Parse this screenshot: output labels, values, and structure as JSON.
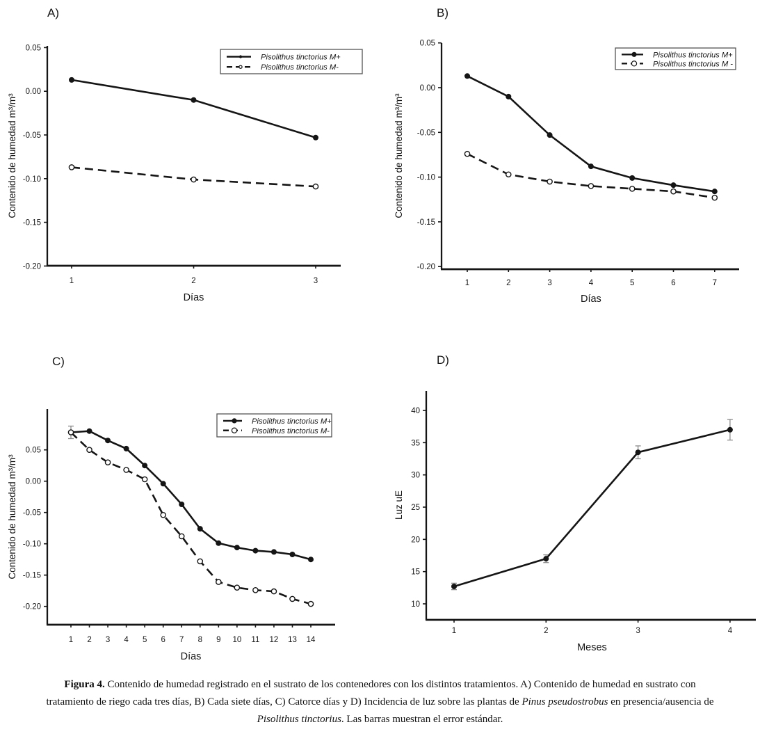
{
  "figure": {
    "caption": {
      "segments": [
        {
          "text": "Figura 4.",
          "style": "bold"
        },
        {
          "text": " Contenido de humedad registrado en el sustrato de los contenedores con los distintos tratamientos. A) Contenido de humedad en sustrato con tratamiento de riego cada tres días, B) Cada siete días, C) Catorce días y D) Incidencia de luz sobre las plantas de ",
          "style": "normal"
        },
        {
          "text": "Pinus pseudostrobus",
          "style": "italic"
        },
        {
          "text": " en presencia/ausencia de ",
          "style": "normal"
        },
        {
          "text": "Pisolithus tinctorius",
          "style": "italic"
        },
        {
          "text": ". Las barras muestran el error estándar.",
          "style": "normal"
        }
      ]
    },
    "colors": {
      "ink": "#151515",
      "background": "#ffffff",
      "error_bar": "#8a8a8a"
    }
  },
  "chart_data": [
    {
      "panel_label": "A)",
      "type": "line",
      "title": "",
      "xlabel": "Días",
      "ylabel": "Contenido de humedad m³/m³",
      "x": [
        1,
        2,
        3
      ],
      "xlim": [
        0.8,
        3.2
      ],
      "ylim": [
        -0.2,
        0.05
      ],
      "yticks": [
        "0.05",
        "0.00",
        "-0.05",
        "-0.10",
        "-0.15",
        "-0.20"
      ],
      "grid": false,
      "legend_position": "top-right",
      "series": [
        {
          "name": "Pisolithus tinctorius M+",
          "line": "solid",
          "marker": "filled-circle",
          "values": [
            0.013,
            -0.01,
            -0.053
          ]
        },
        {
          "name": "Pisolithus tinctorius M-",
          "line": "dashed",
          "marker": "open-circle",
          "values": [
            -0.087,
            -0.101,
            -0.109
          ]
        }
      ]
    },
    {
      "panel_label": "B)",
      "type": "line",
      "title": "",
      "xlabel": "Días",
      "ylabel": "Contenido de humedad m³/m³",
      "x": [
        1,
        2,
        3,
        4,
        5,
        6,
        7
      ],
      "xlim": [
        0.7,
        7.5
      ],
      "ylim": [
        -0.2,
        0.05
      ],
      "yticks": [
        "0.05",
        "0.00",
        "-0.05",
        "-0.10",
        "-0.15",
        "-0.20"
      ],
      "grid": false,
      "legend_position": "top-right",
      "series": [
        {
          "name": "Pisolithus tinctorius M+",
          "line": "solid",
          "marker": "filled-circle",
          "values": [
            0.013,
            -0.01,
            -0.053,
            -0.088,
            -0.101,
            -0.109,
            -0.116
          ]
        },
        {
          "name": "Pisolithus tinctorius M -",
          "line": "dashed",
          "marker": "open-circle",
          "values": [
            -0.074,
            -0.097,
            -0.105,
            -0.11,
            -0.113,
            -0.116,
            -0.123
          ]
        }
      ]
    },
    {
      "panel_label": "C)",
      "type": "line",
      "title": "",
      "xlabel": "Días",
      "ylabel": "Contenido de humedad m³/m³",
      "x": [
        1,
        2,
        3,
        4,
        5,
        6,
        7,
        8,
        9,
        10,
        11,
        12,
        13,
        14
      ],
      "xlim": [
        -0.3,
        15.3
      ],
      "ylim": [
        -0.23,
        0.11
      ],
      "yticks": [
        "0.05",
        "0.00",
        "-0.05",
        "-0.10",
        "-0.15",
        "-0.20"
      ],
      "grid": false,
      "legend_position": "top-right",
      "series": [
        {
          "name": "Pisolithus tinctorius M+",
          "line": "solid",
          "marker": "filled-circle",
          "values": [
            0.078,
            0.08,
            0.065,
            0.052,
            0.025,
            -0.004,
            -0.037,
            -0.076,
            -0.099,
            -0.106,
            -0.111,
            -0.113,
            -0.117,
            -0.125
          ],
          "errors": [
            0.01,
            0,
            0,
            0,
            0,
            0,
            0,
            0,
            0,
            0,
            0,
            0,
            0,
            0
          ]
        },
        {
          "name": "Pisolithus tinctorius M-",
          "line": "dashed",
          "marker": "open-circle",
          "values": [
            0.078,
            0.05,
            0.03,
            0.018,
            0.003,
            -0.054,
            -0.088,
            -0.128,
            -0.161,
            -0.17,
            -0.174,
            -0.176,
            -0.188,
            -0.196
          ]
        }
      ]
    },
    {
      "panel_label": "D)",
      "type": "line",
      "title": "",
      "xlabel": "Meses",
      "ylabel": "Luz uE",
      "x": [
        1,
        2,
        3,
        4
      ],
      "xlim": [
        0.6,
        4.3
      ],
      "ylim": [
        7.5,
        42
      ],
      "yticks": [
        "40",
        "35",
        "30",
        "25",
        "20",
        "15",
        "10"
      ],
      "grid": false,
      "legend_position": "none",
      "series": [
        {
          "name": "Luz",
          "line": "solid",
          "marker": "filled-circle",
          "values": [
            12.7,
            17.0,
            33.5,
            37.0
          ],
          "errors": [
            0.5,
            0.6,
            1.0,
            1.6
          ]
        }
      ]
    }
  ]
}
